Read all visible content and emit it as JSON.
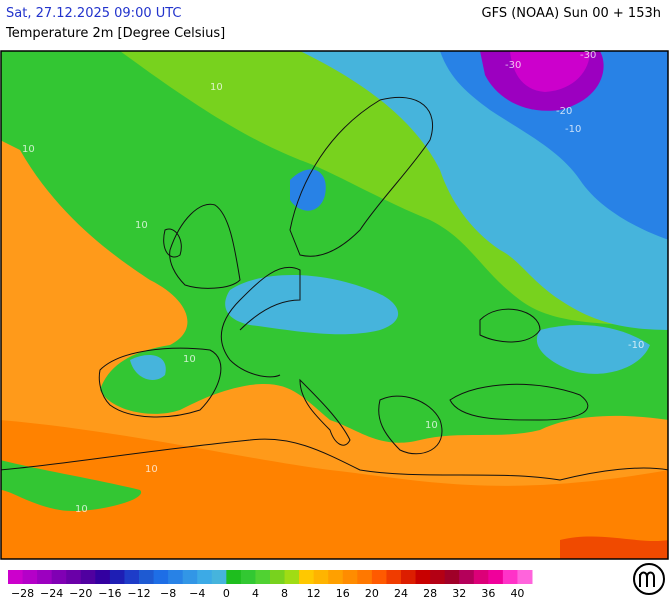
{
  "header": {
    "datetime": "Sat, 27.12.2025 09:00 UTC",
    "model": "GFS (NOAA) Sun 00 + 153h",
    "parameter": "Temperature 2m [Degree Celsius]"
  },
  "map": {
    "contour_labels": [
      "10",
      "10",
      "10",
      "10",
      "10",
      "10",
      "-10",
      "-10",
      "-20",
      "-30",
      "-30",
      "10"
    ]
  },
  "legend": {
    "range": [
      -30,
      42
    ],
    "colors": [
      "#cc00cc",
      "#b400c8",
      "#9c00c0",
      "#8000b4",
      "#6a00a8",
      "#5000a0",
      "#3300a0",
      "#1e1eb4",
      "#1e3cc8",
      "#1e5ad2",
      "#1e6ee6",
      "#2882e6",
      "#3296e6",
      "#3caae6",
      "#46b4dc",
      "#1ebe1e",
      "#32c832",
      "#50d232",
      "#78d21e",
      "#a0dc14",
      "#ffc800",
      "#ffb400",
      "#ffa000",
      "#ff8c00",
      "#ff7800",
      "#ff5a00",
      "#f03c00",
      "#dc1e00",
      "#c80000",
      "#b40014",
      "#a00028",
      "#b4005a",
      "#dc0078",
      "#f0009b",
      "#ff32c8",
      "#ff64dc"
    ],
    "ticks": [
      {
        "value": -28,
        "label": "−28"
      },
      {
        "value": -24,
        "label": "−24"
      },
      {
        "value": -20,
        "label": "−20"
      },
      {
        "value": -16,
        "label": "−16"
      },
      {
        "value": -12,
        "label": "−12"
      },
      {
        "value": -8,
        "label": "−8"
      },
      {
        "value": -4,
        "label": "−4"
      },
      0,
      4,
      8,
      12,
      16,
      20,
      24,
      28,
      32,
      36,
      40
    ]
  }
}
